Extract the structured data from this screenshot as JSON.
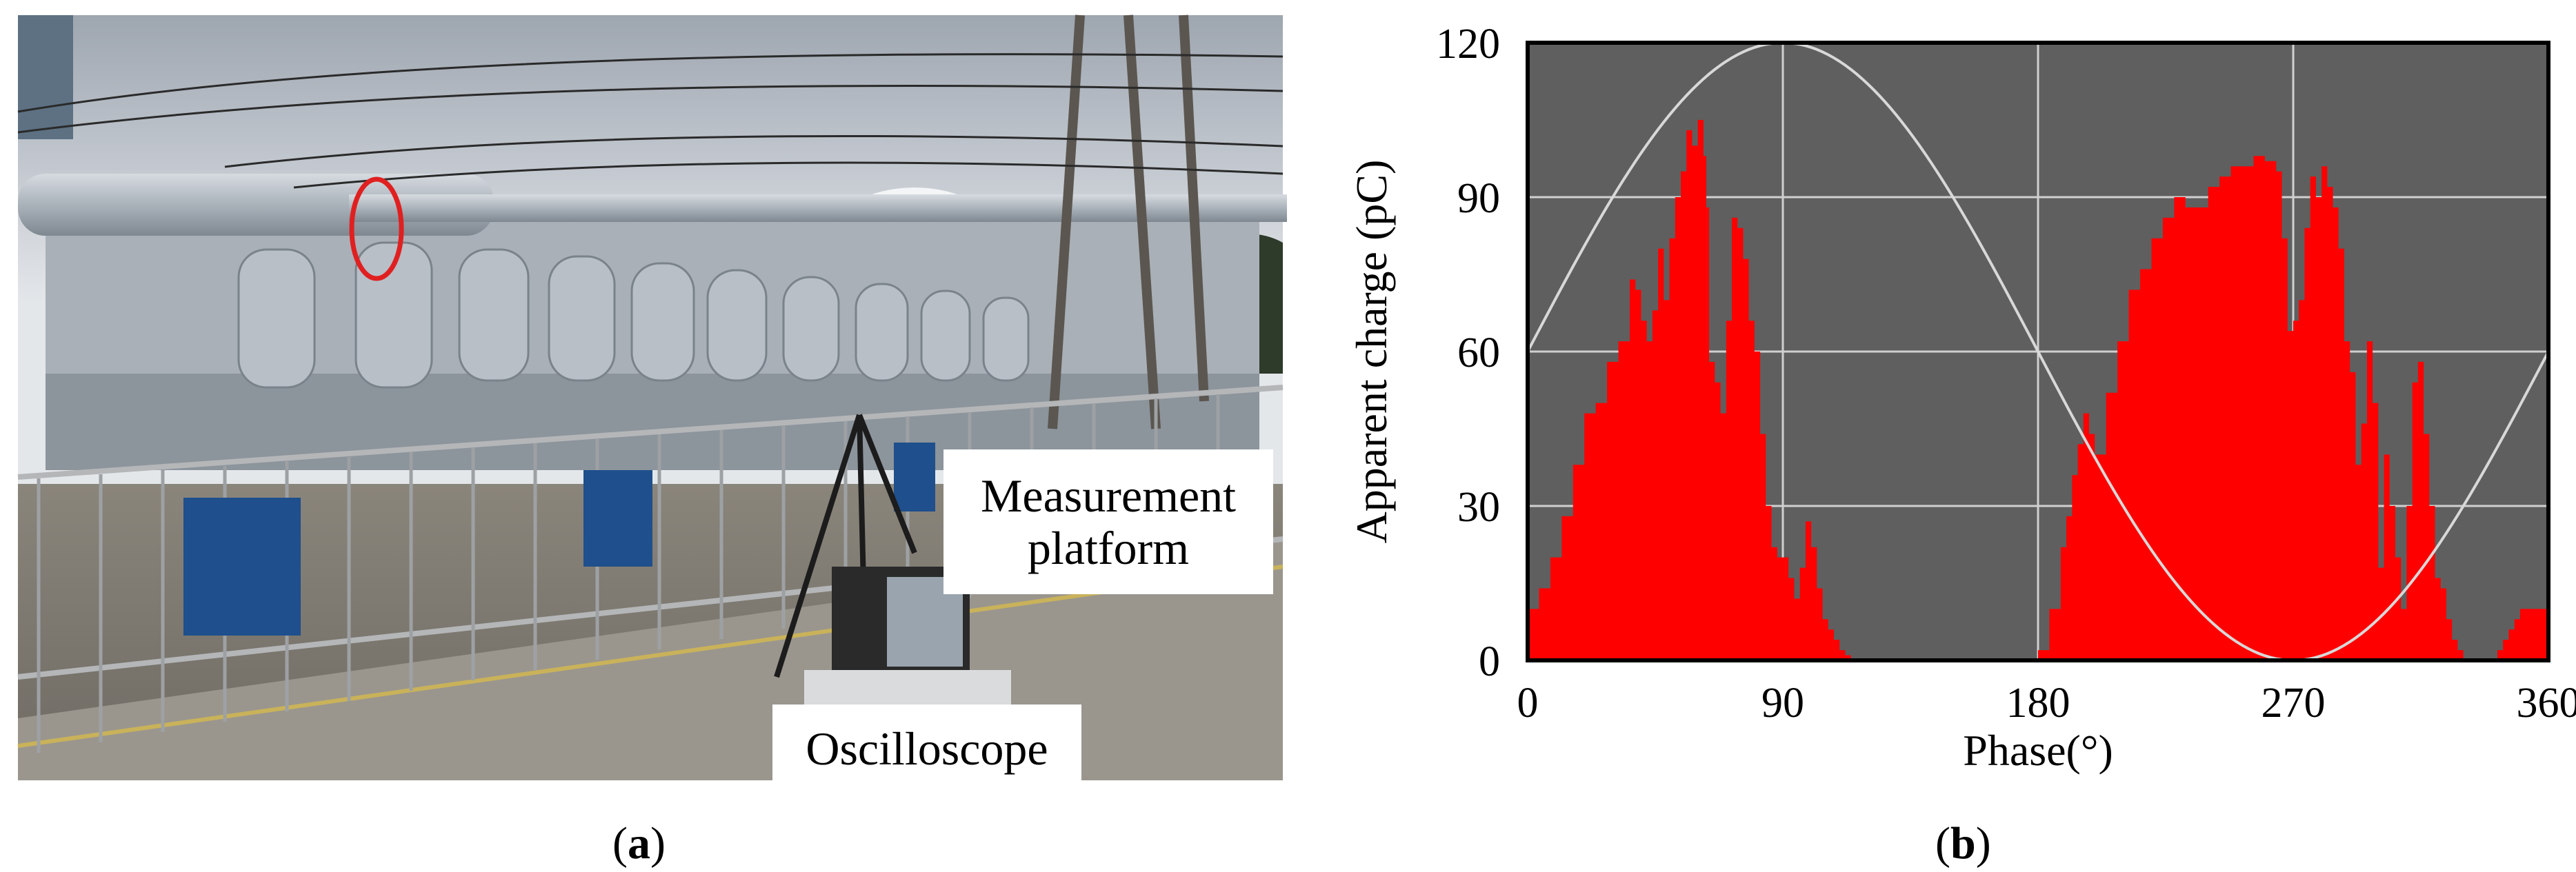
{
  "figure": {
    "panel_a": {
      "caption_open": "(",
      "caption_letter": "a",
      "caption_close": ")",
      "labels": {
        "measurement_line1": "Measurement",
        "measurement_line2": "platform",
        "oscilloscope": "Oscilloscope"
      }
    },
    "panel_b": {
      "caption_open": "(",
      "caption_letter": "b",
      "caption_close": ")"
    }
  },
  "chart_data": {
    "type": "area",
    "xlabel": "Phase(°)",
    "ylabel": "Apparent charge (pC)",
    "xlim": [
      0,
      360
    ],
    "ylim": [
      0,
      120
    ],
    "xticks": [
      0,
      90,
      180,
      270,
      360
    ],
    "yticks": [
      0,
      30,
      60,
      90,
      120
    ],
    "grid": true,
    "colors": {
      "plot_bg": "#5f5f5f",
      "grid": "#d0d0d0",
      "discharge": "#ff0000",
      "sine": "#d8d8d8"
    },
    "reference_sine": {
      "offset_pC": 60,
      "amplitude_pC": 60,
      "peak_phase": 90
    },
    "series": [
      {
        "x": [
          0,
          4,
          8,
          12,
          16,
          20,
          24,
          28,
          32,
          36,
          38,
          40,
          42,
          44,
          46,
          48,
          50,
          52,
          54,
          56,
          58,
          60,
          62,
          63,
          64,
          66,
          68,
          70,
          72,
          74,
          76,
          78,
          80,
          82,
          84,
          86,
          88,
          90,
          92,
          94,
          96,
          98,
          100,
          102,
          104,
          106,
          108,
          110,
          112,
          114,
          116,
          118,
          120
        ],
        "y": [
          10,
          14,
          20,
          28,
          38,
          48,
          50,
          58,
          62,
          74,
          72,
          66,
          62,
          68,
          80,
          70,
          82,
          90,
          95,
          103,
          100,
          105,
          98,
          88,
          58,
          54,
          48,
          66,
          86,
          84,
          78,
          66,
          60,
          44,
          30,
          22,
          20,
          20,
          16,
          12,
          18,
          27,
          22,
          14,
          8,
          6,
          4,
          2,
          1,
          0,
          0,
          0,
          0
        ]
      },
      {
        "x": [
          168,
          172,
          176,
          180,
          184,
          188,
          190,
          192,
          194,
          196,
          198,
          200,
          204,
          208,
          212,
          216,
          220,
          224,
          228,
          232,
          236,
          240,
          244,
          248,
          252,
          256,
          260,
          264,
          266,
          268,
          270,
          272,
          274,
          276,
          278,
          280,
          282,
          284,
          286,
          288,
          290,
          292,
          294,
          296,
          298,
          300,
          302,
          304,
          306,
          308,
          310,
          312,
          314,
          316,
          318,
          320,
          322,
          324,
          326,
          328,
          330,
          332,
          334,
          336,
          338,
          340,
          342,
          344,
          346,
          348,
          350,
          352,
          354,
          356,
          360
        ],
        "y": [
          0,
          0,
          0,
          2,
          10,
          22,
          28,
          36,
          42,
          48,
          44,
          40,
          52,
          62,
          72,
          76,
          82,
          86,
          90,
          88,
          88,
          92,
          94,
          96,
          96,
          98,
          97,
          95,
          82,
          64,
          66,
          70,
          84,
          94,
          90,
          96,
          92,
          88,
          80,
          62,
          56,
          38,
          46,
          62,
          50,
          18,
          40,
          30,
          20,
          10,
          30,
          54,
          58,
          44,
          30,
          16,
          14,
          8,
          4,
          2,
          0,
          0,
          0,
          0,
          0,
          0,
          2,
          4,
          6,
          8,
          10,
          10,
          10,
          10,
          10
        ]
      }
    ]
  }
}
